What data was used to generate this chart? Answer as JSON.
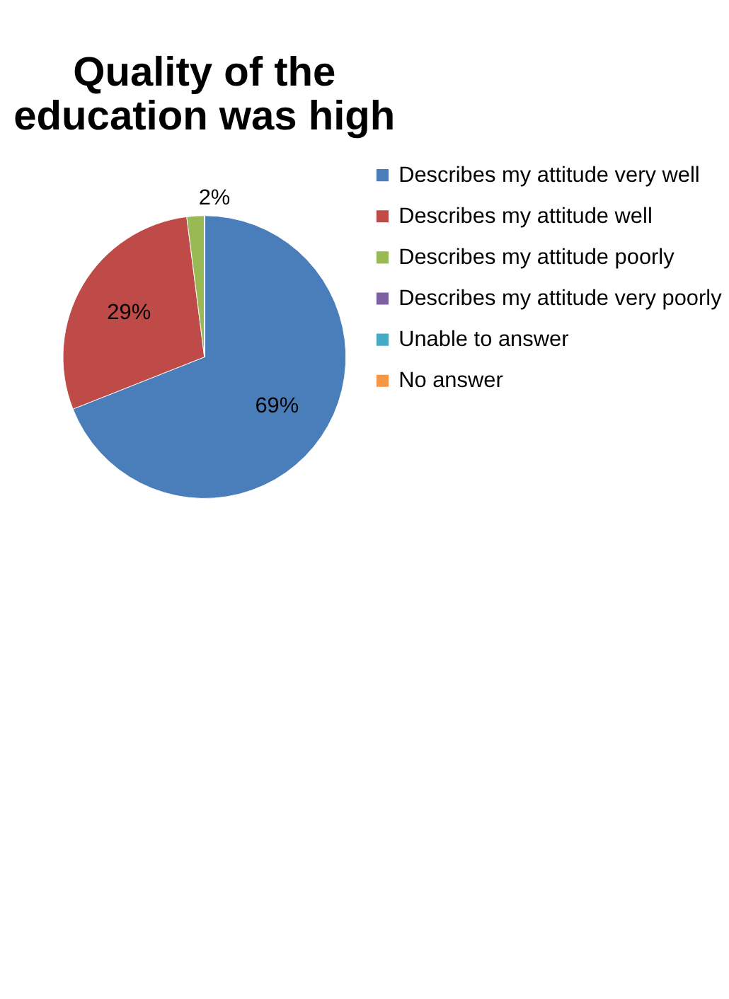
{
  "chart_data": {
    "type": "pie",
    "title": "Quality of the education was high",
    "categories": [
      "Describes my attitude very well",
      "Describes my attitude well",
      "Describes my attitude poorly",
      "Describes my attitude very poorly",
      "Unable to answer",
      "No answer"
    ],
    "values": [
      69,
      29,
      2,
      0,
      0,
      0
    ],
    "colors": [
      "#4a7ebb",
      "#be4b48",
      "#98b954",
      "#7d60a0",
      "#46aac5",
      "#f79646"
    ],
    "value_labels": [
      "69%",
      "29%",
      "2%",
      null,
      null,
      null
    ],
    "legend": "right"
  }
}
